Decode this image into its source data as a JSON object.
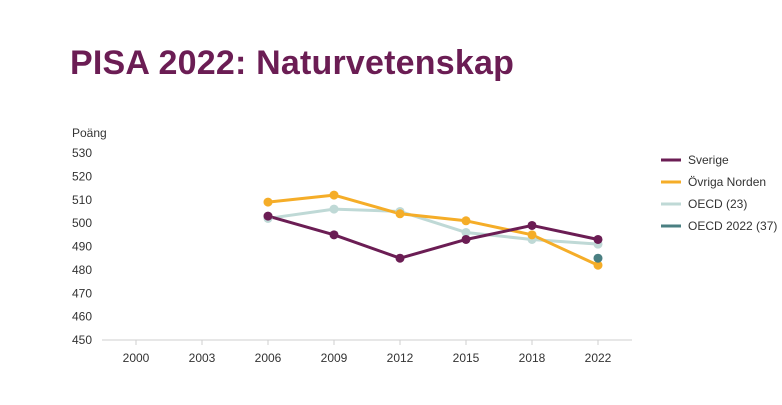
{
  "title": "PISA 2022: Naturvetenskap",
  "chart_data": {
    "type": "line",
    "title": "PISA 2022: Naturvetenskap",
    "ylabel": "Poäng",
    "xlabel": "",
    "categories": [
      "2000",
      "2003",
      "2006",
      "2009",
      "2012",
      "2015",
      "2018",
      "2022"
    ],
    "y_ticks": [
      450,
      460,
      470,
      480,
      490,
      500,
      510,
      520,
      530
    ],
    "ylim": [
      450,
      530
    ],
    "grid": false,
    "legend_position": "right",
    "series": [
      {
        "name": "Sverige",
        "color": "#6b1d54",
        "values": [
          null,
          null,
          503,
          495,
          485,
          493,
          499,
          493
        ]
      },
      {
        "name": "Övriga Norden",
        "color": "#f5ad28",
        "values": [
          null,
          null,
          509,
          512,
          504,
          501,
          495,
          482
        ]
      },
      {
        "name": "OECD (23)",
        "color": "#bfd9d6",
        "values": [
          null,
          null,
          502,
          506,
          505,
          496,
          493,
          491
        ]
      },
      {
        "name": "OECD 2022 (37)",
        "color": "#4a7f82",
        "values": [
          null,
          null,
          null,
          null,
          null,
          null,
          null,
          485
        ]
      }
    ]
  }
}
